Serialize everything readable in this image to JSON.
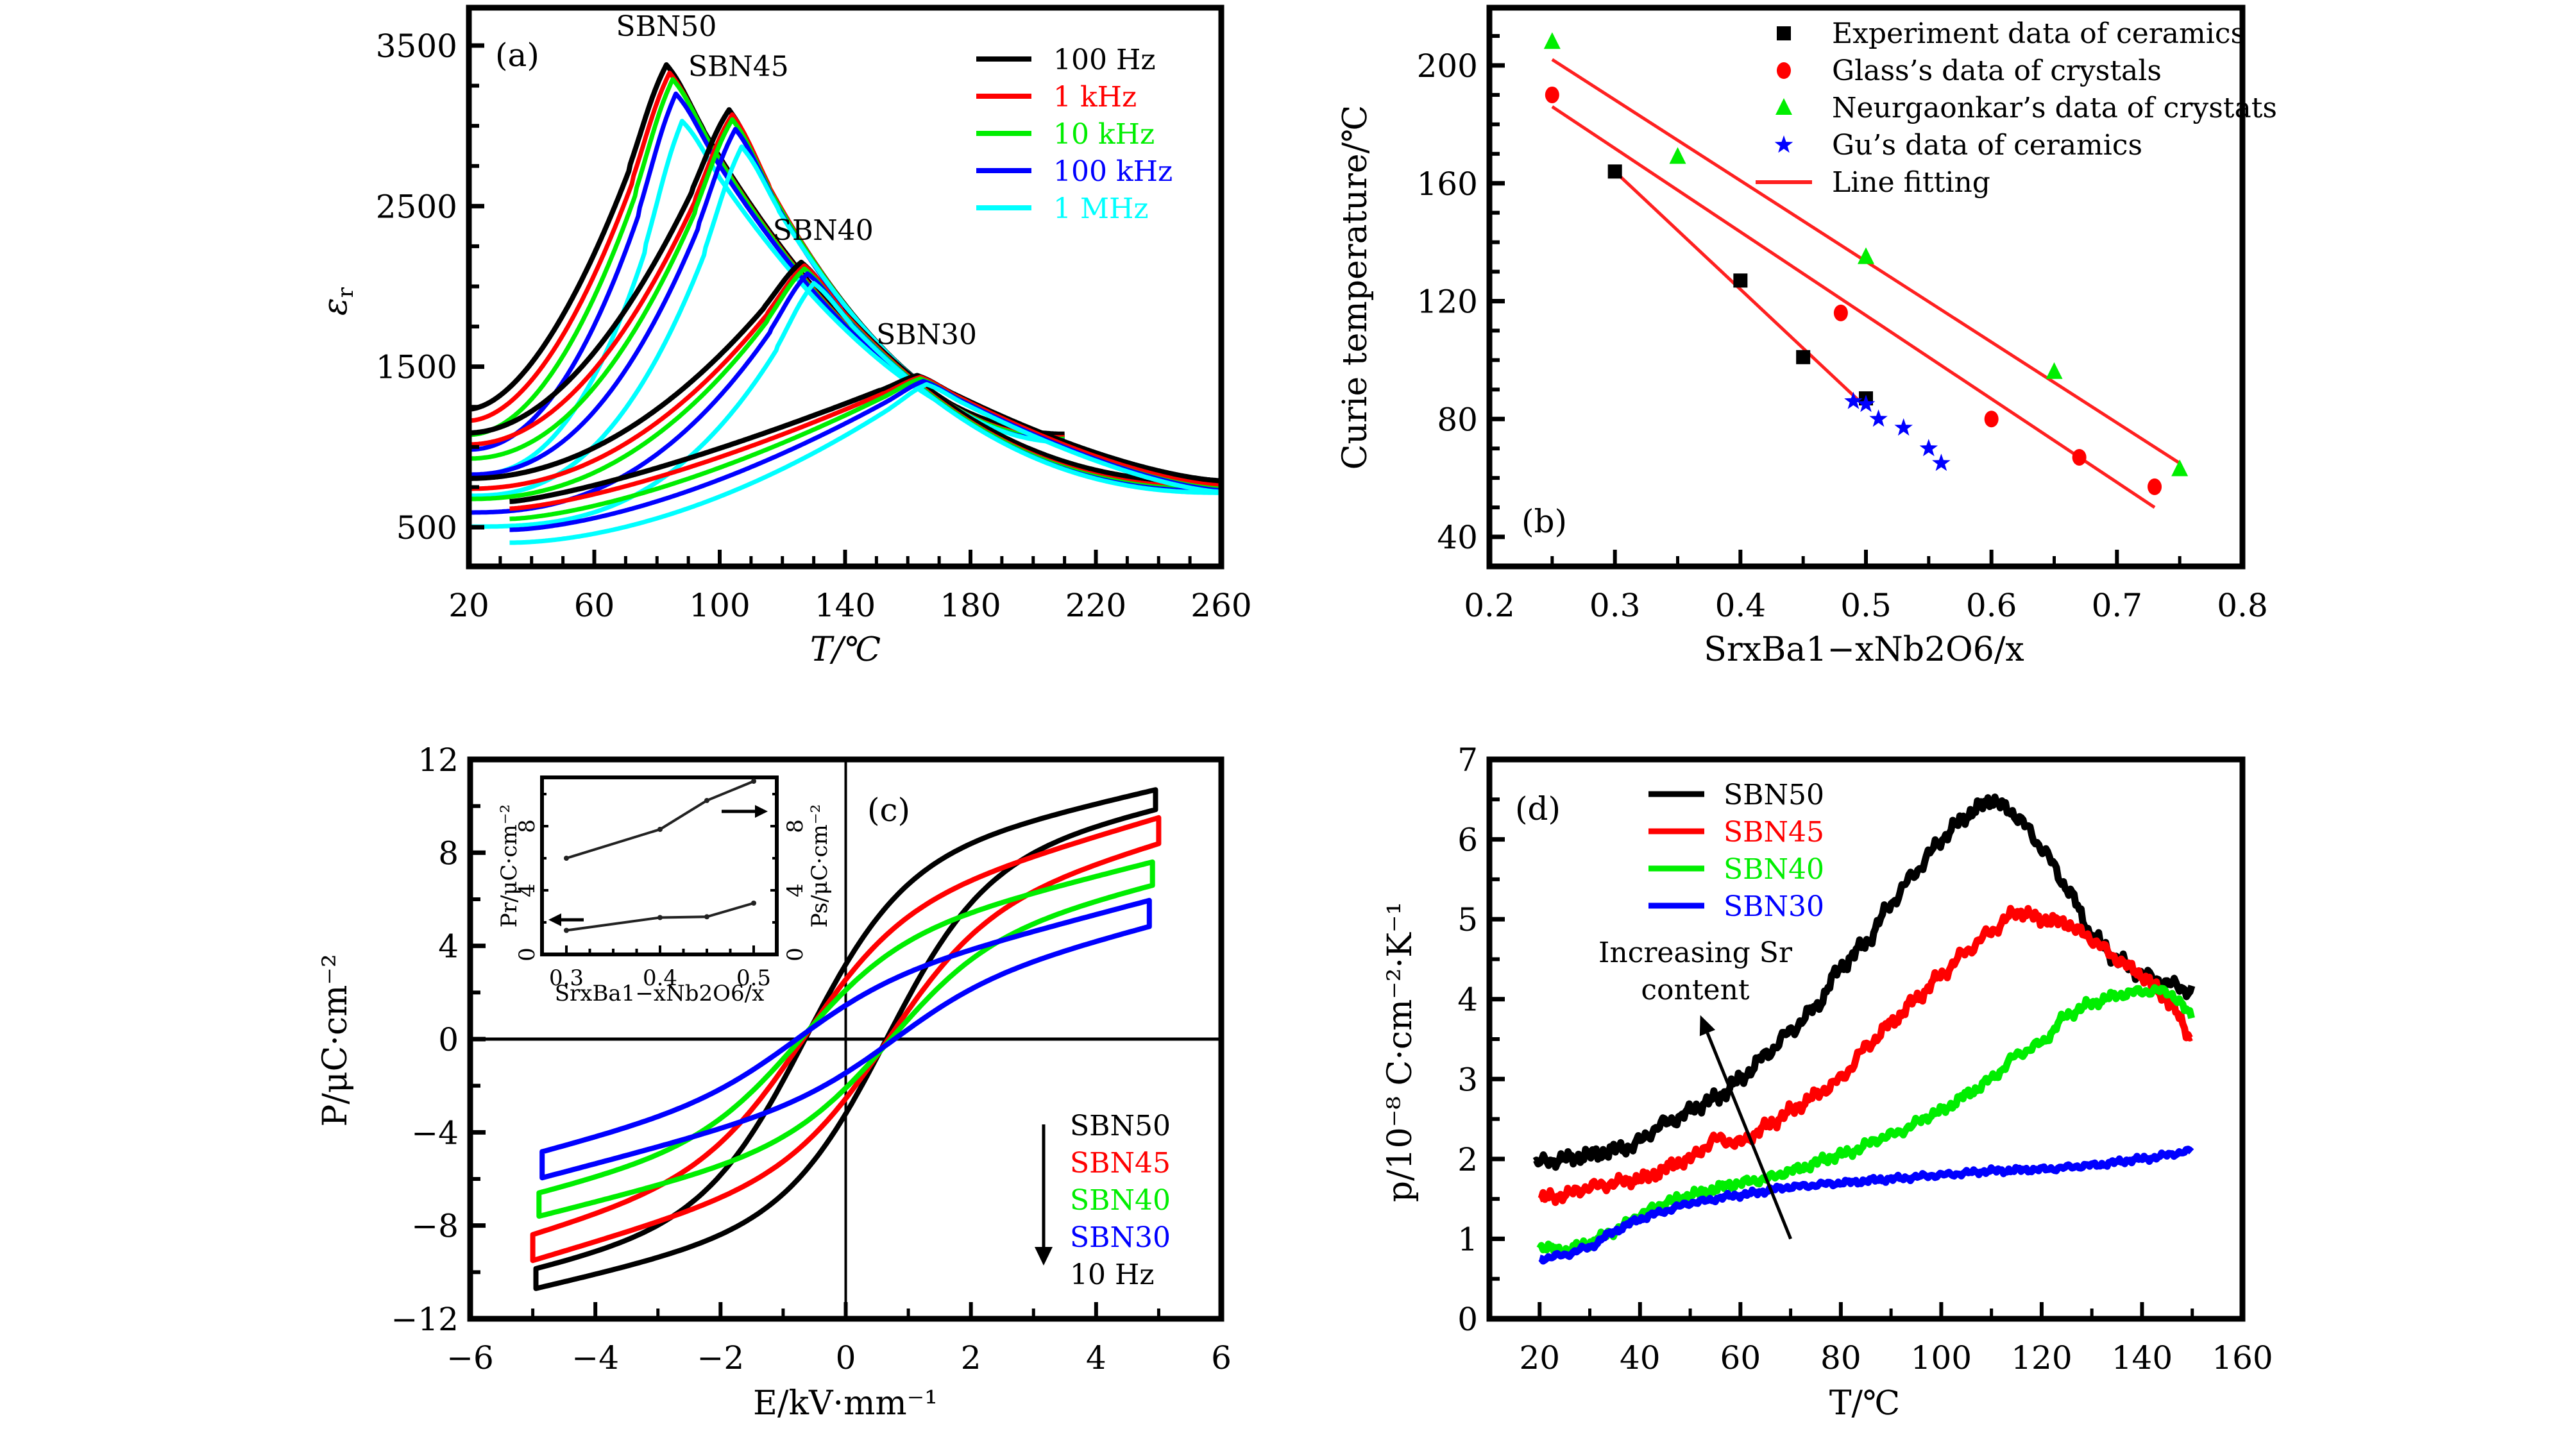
{
  "figure": {
    "colors": {
      "black": "#000000",
      "red": "#ff0000",
      "green": "#00ee00",
      "blue": "#0000ff",
      "cyan": "#00ffff",
      "fit": "#ff2020"
    }
  },
  "chart_data": [
    {
      "id": "a",
      "type": "line",
      "panel_label": "(a)",
      "xlabel": "T/℃",
      "ylabel": "ε_r",
      "ylabel_main": "ε",
      "ylabel_sub": "r",
      "xlim": [
        20,
        260
      ],
      "ylim": [
        500,
        3500
      ],
      "xticks": [
        20,
        60,
        100,
        140,
        180,
        220,
        260
      ],
      "xtick_labels": [
        "20",
        "60",
        "100",
        "140",
        "180",
        "220",
        "260"
      ],
      "yticks": [
        500,
        1500,
        2500,
        3500
      ],
      "ytick_labels": [
        "500",
        "1500",
        "2500",
        "3500"
      ],
      "legend": [
        {
          "label": "100 Hz",
          "color": "#000000"
        },
        {
          "label": "1 kHz",
          "color": "#ff0000"
        },
        {
          "label": "10 kHz",
          "color": "#00ee00"
        },
        {
          "label": "100 kHz",
          "color": "#0000ff"
        },
        {
          "label": "1 MHz",
          "color": "#00ffff"
        }
      ],
      "annotations": [
        {
          "text": "SBN50",
          "x": 83,
          "y": 3560
        },
        {
          "text": "SBN45",
          "x": 106,
          "y": 3310
        },
        {
          "text": "SBN40",
          "x": 133,
          "y": 2290
        },
        {
          "text": "SBN30",
          "x": 166,
          "y": 1640
        }
      ],
      "series": [
        {
          "name": "SBN50",
          "curves": [
            {
              "freq": "100 Hz",
              "T_start": 20,
              "e_start": 1236,
              "Tm": 83,
              "em": 3380,
              "T_end": 210,
              "e_end": 1080,
              "p": 1.75,
              "q": 2.0
            },
            {
              "freq": "1 kHz",
              "T_start": 20,
              "e_start": 1164,
              "Tm": 84,
              "em": 3330,
              "T_end": 210,
              "e_end": 1070,
              "p": 1.85,
              "q": 2.0
            },
            {
              "freq": "10 kHz",
              "T_start": 20,
              "e_start": 1076,
              "Tm": 85,
              "em": 3290,
              "T_end": 210,
              "e_end": 1060,
              "p": 1.95,
              "q": 2.0
            },
            {
              "freq": "100 kHz",
              "T_start": 20,
              "e_start": 984,
              "Tm": 86,
              "em": 3200,
              "T_end": 210,
              "e_end": 1050,
              "p": 2.1,
              "q": 1.95
            },
            {
              "freq": "1 MHz",
              "T_start": 20,
              "e_start": 824,
              "Tm": 88,
              "em": 3030,
              "T_end": 210,
              "e_end": 1040,
              "p": 2.4,
              "q": 1.9
            }
          ]
        },
        {
          "name": "SBN45",
          "curves": [
            {
              "freq": "100 Hz",
              "T_start": 20,
              "e_start": 1088,
              "Tm": 103,
              "em": 3100,
              "T_end": 210,
              "e_end": 1070,
              "p": 1.9,
              "q": 2.15
            },
            {
              "freq": "1 kHz",
              "T_start": 20,
              "e_start": 1016,
              "Tm": 104,
              "em": 3070,
              "T_end": 210,
              "e_end": 1060,
              "p": 2.0,
              "q": 2.15
            },
            {
              "freq": "10 kHz",
              "T_start": 20,
              "e_start": 928,
              "Tm": 104,
              "em": 3040,
              "T_end": 210,
              "e_end": 1050,
              "p": 2.1,
              "q": 2.1
            },
            {
              "freq": "100 kHz",
              "T_start": 20,
              "e_start": 828,
              "Tm": 105,
              "em": 2980,
              "T_end": 210,
              "e_end": 1040,
              "p": 2.25,
              "q": 2.1
            },
            {
              "freq": "1 MHz",
              "T_start": 20,
              "e_start": 696,
              "Tm": 107,
              "em": 2870,
              "T_end": 210,
              "e_end": 1030,
              "p": 2.5,
              "q": 2.0
            }
          ]
        },
        {
          "name": "SBN40",
          "curves": [
            {
              "freq": "100 Hz",
              "T_start": 20,
              "e_start": 804,
              "Tm": 126,
              "em": 2150,
              "T_end": 260,
              "e_end": 780,
              "p": 2.0,
              "q": 2.4
            },
            {
              "freq": "1 kHz",
              "T_start": 20,
              "e_start": 740,
              "Tm": 127,
              "em": 2130,
              "T_end": 260,
              "e_end": 750,
              "p": 2.1,
              "q": 2.4
            },
            {
              "freq": "10 kHz",
              "T_start": 20,
              "e_start": 676,
              "Tm": 127,
              "em": 2110,
              "T_end": 260,
              "e_end": 735,
              "p": 2.2,
              "q": 2.35
            },
            {
              "freq": "100 kHz",
              "T_start": 20,
              "e_start": 592,
              "Tm": 128,
              "em": 2080,
              "T_end": 260,
              "e_end": 725,
              "p": 2.4,
              "q": 2.35
            },
            {
              "freq": "1 MHz",
              "T_start": 20,
              "e_start": 504,
              "Tm": 130,
              "em": 2020,
              "T_end": 260,
              "e_end": 715,
              "p": 2.8,
              "q": 2.3
            }
          ]
        },
        {
          "name": "SBN30",
          "curves": [
            {
              "freq": "100 Hz",
              "T_start": 33,
              "e_start": 660,
              "Tm": 163,
              "em": 1445,
              "T_end": 260,
              "e_end": 790,
              "p": 1.3,
              "q": 1.5
            },
            {
              "freq": "1 kHz",
              "T_start": 33,
              "e_start": 616,
              "Tm": 164,
              "em": 1435,
              "T_end": 260,
              "e_end": 760,
              "p": 1.4,
              "q": 1.5
            },
            {
              "freq": "10 kHz",
              "T_start": 33,
              "e_start": 552,
              "Tm": 164,
              "em": 1425,
              "T_end": 260,
              "e_end": 740,
              "p": 1.5,
              "q": 1.5
            },
            {
              "freq": "100 kHz",
              "T_start": 33,
              "e_start": 484,
              "Tm": 165,
              "em": 1410,
              "T_end": 260,
              "e_end": 730,
              "p": 1.6,
              "q": 1.45
            },
            {
              "freq": "1 MHz",
              "T_start": 33,
              "e_start": 404,
              "Tm": 166,
              "em": 1390,
              "T_end": 260,
              "e_end": 720,
              "p": 1.8,
              "q": 1.45
            }
          ]
        }
      ]
    },
    {
      "id": "b",
      "type": "scatter",
      "panel_label": "(b)",
      "xlabel": "SrxBa1−xNb2O6/x",
      "ylabel": "Curie temperature/℃",
      "xlim": [
        0.2,
        0.8
      ],
      "ylim": [
        30,
        220
      ],
      "xticks": [
        0.2,
        0.3,
        0.4,
        0.5,
        0.6,
        0.7,
        0.8
      ],
      "xtick_labels": [
        "0.2",
        "0.3",
        "0.4",
        "0.5",
        "0.6",
        "0.7",
        "0.8"
      ],
      "yticks": [
        40,
        80,
        120,
        160,
        200
      ],
      "ytick_labels": [
        "40",
        "80",
        "120",
        "160",
        "200"
      ],
      "series": [
        {
          "name": "Experiment data of ceramics",
          "marker": "square",
          "color": "#000000",
          "x": [
            0.3,
            0.4,
            0.45,
            0.5
          ],
          "y": [
            164,
            127,
            101,
            87
          ]
        },
        {
          "name": "Glass’s data of crystals",
          "marker": "circle",
          "color": "#ff0000",
          "x": [
            0.25,
            0.48,
            0.6,
            0.67,
            0.73
          ],
          "y": [
            190,
            116,
            80,
            67,
            57
          ]
        },
        {
          "name": "Neurgaonkar’s data of crystats",
          "marker": "triangle",
          "color": "#00ee00",
          "x": [
            0.25,
            0.35,
            0.5,
            0.65,
            0.75
          ],
          "y": [
            208,
            169,
            135,
            96,
            63
          ]
        },
        {
          "name": "Gu’s data of ceramics",
          "marker": "star",
          "color": "#0000ff",
          "x": [
            0.49,
            0.5,
            0.51,
            0.53,
            0.55,
            0.56
          ],
          "y": [
            86,
            85,
            80,
            77,
            70,
            65
          ]
        }
      ],
      "fit_lines": [
        {
          "name": "Line fitting",
          "color": "#ff2020",
          "x": [
            0.25,
            0.75
          ],
          "y": [
            202,
            65
          ]
        },
        {
          "name": "Line fitting",
          "color": "#ff2020",
          "x": [
            0.25,
            0.73
          ],
          "y": [
            186,
            50
          ]
        },
        {
          "name": "Line fitting",
          "color": "#ff2020",
          "x": [
            0.3,
            0.495
          ],
          "y": [
            164,
            86
          ]
        }
      ],
      "legend": [
        {
          "label": "Experiment data of ceramics",
          "marker": "square",
          "color": "#000000"
        },
        {
          "label": "Glass’s data of crystals",
          "marker": "circle",
          "color": "#ff0000"
        },
        {
          "label": "Neurgaonkar’s data of crystats",
          "marker": "triangle",
          "color": "#00ee00"
        },
        {
          "label": "Gu’s data of ceramics",
          "marker": "star",
          "color": "#0000ff"
        },
        {
          "label": "Line fitting",
          "marker": "line",
          "color": "#ff2020"
        }
      ]
    },
    {
      "id": "c",
      "type": "line",
      "panel_label": "(c)",
      "xlabel": "E/kV·mm⁻¹",
      "ylabel": "P/μC·cm⁻²",
      "xlim": [
        -6,
        6
      ],
      "ylim": [
        -12,
        12
      ],
      "xticks": [
        -6,
        -4,
        -2,
        0,
        2,
        4,
        6
      ],
      "xtick_labels": [
        "−6",
        "−4",
        "−2",
        "0",
        "2",
        "4",
        "6"
      ],
      "yticks": [
        -12,
        -8,
        -4,
        0,
        4,
        8,
        12
      ],
      "ytick_labels": [
        "−12",
        "−8",
        "−4",
        "0",
        "4",
        "8",
        "12"
      ],
      "legend": [
        {
          "label": "SBN50",
          "color": "#000000"
        },
        {
          "label": "SBN45",
          "color": "#ff0000"
        },
        {
          "label": "SBN40",
          "color": "#00ee00"
        },
        {
          "label": "SBN30",
          "color": "#0000ff"
        },
        {
          "label": "10 Hz",
          "color": "#000000"
        }
      ],
      "series": [
        {
          "name": "SBN50",
          "color": "#000000",
          "E_max": 4.95,
          "P_max": 10.7,
          "P_r": 3.2,
          "E_c": 0.65
        },
        {
          "name": "SBN45",
          "color": "#ff0000",
          "E_max": 5.0,
          "P_max": 9.5,
          "P_r": 2.55,
          "E_c": 0.68
        },
        {
          "name": "SBN40",
          "color": "#00ee00",
          "E_max": 4.9,
          "P_max": 7.6,
          "P_r": 2.1,
          "E_c": 0.72
        },
        {
          "name": "SBN30",
          "color": "#0000ff",
          "E_max": 4.85,
          "P_max": 5.95,
          "P_r": 1.45,
          "E_c": 0.78
        }
      ],
      "inset": {
        "xlabel": "SrxBa1−xNb2O6/x",
        "ylabel_left": "Pr/μC·cm⁻²",
        "ylabel_right": "Ps/μC·cm⁻²",
        "xlim": [
          0.275,
          0.525
        ],
        "ylim": [
          0,
          12
        ],
        "xticks": [
          0.3,
          0.4,
          0.5
        ],
        "xtick_labels": [
          "0.3",
          "0.4",
          "0.5"
        ],
        "yticks": [
          0,
          4,
          8
        ],
        "ytick_labels": [
          "0",
          "4",
          "8"
        ],
        "x": [
          0.3,
          0.4,
          0.45,
          0.5
        ],
        "Pr": [
          1.5,
          2.3,
          2.35,
          3.2
        ],
        "Ps": [
          6.0,
          7.8,
          9.6,
          10.8
        ]
      }
    },
    {
      "id": "d",
      "type": "line",
      "panel_label": "(d)",
      "xlabel": "T/℃",
      "ylabel": "p/10⁻⁸ C·cm⁻²·K⁻¹",
      "xlim": [
        10,
        160
      ],
      "ylim": [
        0,
        7
      ],
      "xticks": [
        20,
        40,
        60,
        80,
        100,
        120,
        140,
        160
      ],
      "xtick_labels": [
        "20",
        "40",
        "60",
        "80",
        "100",
        "120",
        "140",
        "160"
      ],
      "yticks": [
        0,
        1,
        2,
        3,
        4,
        5,
        6,
        7
      ],
      "ytick_labels": [
        "0",
        "1",
        "2",
        "3",
        "4",
        "5",
        "6",
        "7"
      ],
      "annotation": {
        "lines": [
          "Increasing Sr",
          "content"
        ],
        "arrow_from": [
          70,
          1.0
        ],
        "arrow_to": [
          52,
          3.8
        ]
      },
      "legend": [
        {
          "label": "SBN50",
          "color": "#000000"
        },
        {
          "label": "SBN45",
          "color": "#ff0000"
        },
        {
          "label": "SBN40",
          "color": "#00ee00"
        },
        {
          "label": "SBN30",
          "color": "#0000ff"
        }
      ],
      "series": [
        {
          "name": "SBN50",
          "color": "#000000",
          "x": [
            19,
            25,
            30,
            38,
            45,
            55,
            60,
            65,
            70,
            75,
            80,
            85,
            90,
            95,
            100,
            105,
            110,
            115,
            120,
            125,
            130,
            135,
            140,
            145,
            150
          ],
          "y": [
            1.95,
            2.0,
            2.05,
            2.15,
            2.45,
            2.75,
            3.0,
            3.3,
            3.6,
            3.9,
            4.4,
            4.7,
            5.2,
            5.6,
            6.0,
            6.3,
            6.5,
            6.3,
            5.9,
            5.4,
            4.8,
            4.5,
            4.3,
            4.2,
            4.1
          ]
        },
        {
          "name": "SBN45",
          "color": "#ff0000",
          "x": [
            20,
            25,
            30,
            40,
            50,
            55,
            60,
            65,
            70,
            75,
            80,
            85,
            90,
            95,
            100,
            105,
            110,
            115,
            120,
            125,
            130,
            135,
            140,
            145,
            150
          ],
          "y": [
            1.5,
            1.55,
            1.65,
            1.75,
            2.0,
            2.25,
            2.2,
            2.4,
            2.6,
            2.8,
            3.0,
            3.4,
            3.7,
            4.0,
            4.3,
            4.6,
            4.85,
            5.1,
            5.0,
            4.95,
            4.75,
            4.5,
            4.3,
            4.0,
            3.5
          ]
        },
        {
          "name": "SBN40",
          "color": "#00ee00",
          "x": [
            20,
            25,
            30,
            35,
            40,
            45,
            50,
            60,
            65,
            70,
            80,
            90,
            100,
            105,
            110,
            115,
            120,
            125,
            130,
            135,
            140,
            145,
            150
          ],
          "y": [
            0.9,
            0.85,
            0.95,
            1.1,
            1.3,
            1.45,
            1.55,
            1.7,
            1.75,
            1.85,
            2.05,
            2.3,
            2.6,
            2.8,
            3.0,
            3.3,
            3.45,
            3.8,
            3.95,
            4.05,
            4.1,
            4.1,
            3.8
          ]
        },
        {
          "name": "SBN30",
          "color": "#0000ff",
          "x": [
            20,
            25,
            30,
            35,
            40,
            45,
            50,
            60,
            70,
            80,
            90,
            100,
            110,
            120,
            130,
            140,
            150
          ],
          "y": [
            0.75,
            0.8,
            0.9,
            1.1,
            1.25,
            1.35,
            1.45,
            1.55,
            1.65,
            1.7,
            1.75,
            1.8,
            1.85,
            1.87,
            1.92,
            2.0,
            2.1
          ]
        }
      ]
    }
  ]
}
